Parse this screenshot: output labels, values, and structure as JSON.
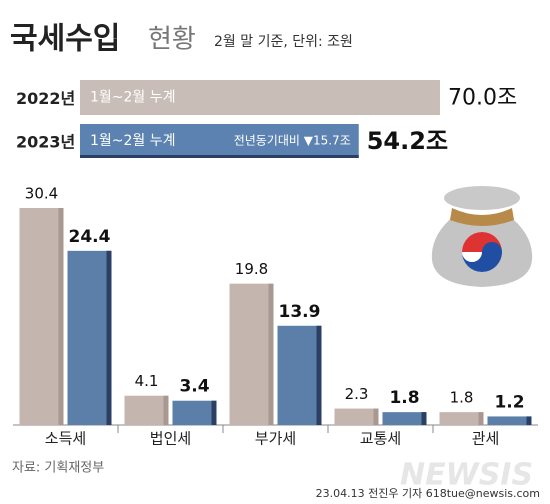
{
  "header": {
    "title": "국세수입",
    "subtitle": "현황",
    "note": "2월 말 기준, 단위: 조원"
  },
  "chart_data": [
    {
      "type": "hbar",
      "categories": [
        "2022년",
        "2023년"
      ],
      "bar_labels": [
        "1월~2월 누계",
        "1월~2월 누계"
      ],
      "values": [
        70.0,
        54.2
      ],
      "value_labels": [
        "70.0조",
        "54.2조"
      ],
      "colors": [
        "#c9bdb7",
        "#5b82b0"
      ],
      "annotation": "전년동기대비 ▼15.7조"
    },
    {
      "type": "grouped_bar",
      "categories": [
        "소득세",
        "법인세",
        "부가세",
        "교통세",
        "관세"
      ],
      "series": [
        {
          "color": "#c4b5ae",
          "values": [
            30.4,
            4.1,
            19.8,
            2.3,
            1.8
          ]
        },
        {
          "color": "#5b7fa8",
          "values": [
            24.4,
            3.4,
            13.9,
            1.8,
            1.2
          ]
        }
      ]
    }
  ],
  "footer": {
    "source": "자료: 기획재정부",
    "credit": "23.04.13 전진우 기자 618tue@newsis.com",
    "watermark": "NEWSIS"
  }
}
